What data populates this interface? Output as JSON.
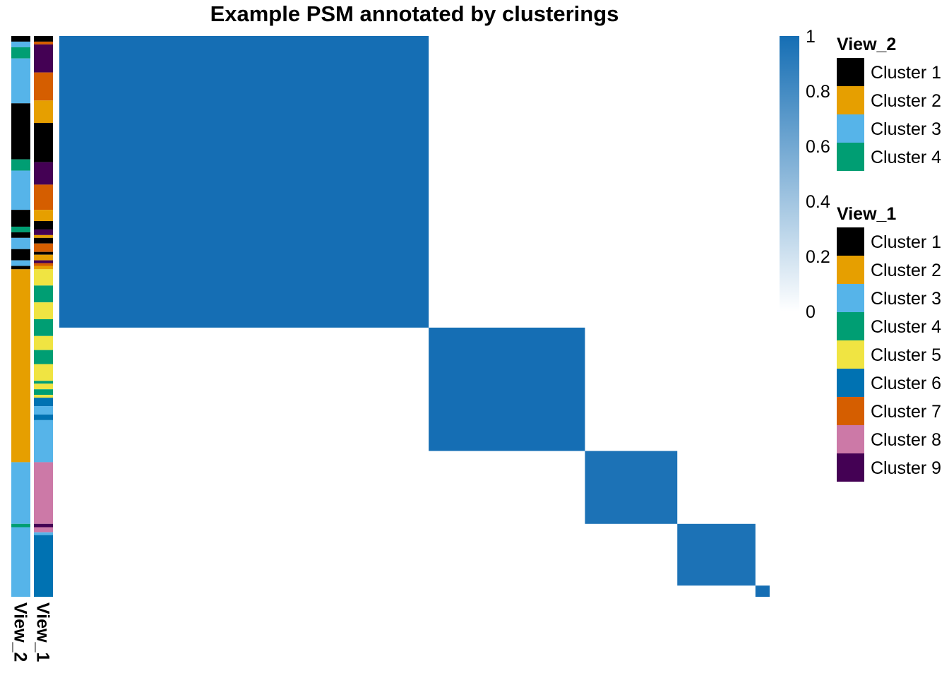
{
  "chart_data": {
    "type": "heatmap",
    "title": "Example PSM annotated by clusterings",
    "color_scale": {
      "low": "#ffffff",
      "high": "#156eb4",
      "min": 0,
      "max": 1,
      "ticks": [
        "1",
        "0.8",
        "0.6",
        "0.4",
        "0.2",
        "0"
      ]
    },
    "n_items": 100,
    "matrix_blocks": [
      {
        "start": 0,
        "end": 52,
        "value": 1.0
      },
      {
        "start": 52,
        "end": 74,
        "value": 1.0
      },
      {
        "start": 74,
        "end": 87,
        "value": 0.97
      },
      {
        "start": 87,
        "end": 98,
        "value": 0.97
      },
      {
        "start": 98,
        "end": 100,
        "value": 1.0
      },
      {
        "start": 100,
        "end": 100,
        "value": 1.0
      }
    ],
    "annotations": [
      {
        "name": "View_2",
        "segments": [
          {
            "start": 0,
            "end": 1,
            "cluster": "Cluster 1"
          },
          {
            "start": 1,
            "end": 2,
            "cluster": "Cluster 3"
          },
          {
            "start": 2,
            "end": 4,
            "cluster": "Cluster 4"
          },
          {
            "start": 4,
            "end": 12,
            "cluster": "Cluster 3"
          },
          {
            "start": 12,
            "end": 22,
            "cluster": "Cluster 1"
          },
          {
            "start": 22,
            "end": 24,
            "cluster": "Cluster 4"
          },
          {
            "start": 24,
            "end": 31,
            "cluster": "Cluster 3"
          },
          {
            "start": 31,
            "end": 34,
            "cluster": "Cluster 1"
          },
          {
            "start": 34,
            "end": 35,
            "cluster": "Cluster 4"
          },
          {
            "start": 35,
            "end": 36,
            "cluster": "Cluster 1"
          },
          {
            "start": 36,
            "end": 38,
            "cluster": "Cluster 3"
          },
          {
            "start": 38,
            "end": 40,
            "cluster": "Cluster 1"
          },
          {
            "start": 40,
            "end": 41,
            "cluster": "Cluster 3"
          },
          {
            "start": 41,
            "end": 41.6,
            "cluster": "Cluster 1"
          },
          {
            "start": 41.6,
            "end": 76,
            "cluster": "Cluster 2"
          },
          {
            "start": 76,
            "end": 87,
            "cluster": "Cluster 3"
          },
          {
            "start": 87,
            "end": 87.6,
            "cluster": "Cluster 4"
          },
          {
            "start": 87.6,
            "end": 100,
            "cluster": "Cluster 3"
          }
        ]
      },
      {
        "name": "View_1",
        "segments": [
          {
            "start": 0,
            "end": 1,
            "cluster": "Cluster 1"
          },
          {
            "start": 1,
            "end": 1.5,
            "cluster": "Cluster 7"
          },
          {
            "start": 1.5,
            "end": 6.5,
            "cluster": "Cluster 9"
          },
          {
            "start": 6.5,
            "end": 11.5,
            "cluster": "Cluster 7"
          },
          {
            "start": 11.5,
            "end": 15.5,
            "cluster": "Cluster 2"
          },
          {
            "start": 15.5,
            "end": 22.5,
            "cluster": "Cluster 1"
          },
          {
            "start": 22.5,
            "end": 26.5,
            "cluster": "Cluster 9"
          },
          {
            "start": 26.5,
            "end": 31,
            "cluster": "Cluster 7"
          },
          {
            "start": 31,
            "end": 33,
            "cluster": "Cluster 2"
          },
          {
            "start": 33,
            "end": 34.5,
            "cluster": "Cluster 1"
          },
          {
            "start": 34.5,
            "end": 35.5,
            "cluster": "Cluster 9"
          },
          {
            "start": 35.5,
            "end": 36,
            "cluster": "Cluster 2"
          },
          {
            "start": 36,
            "end": 37,
            "cluster": "Cluster 1"
          },
          {
            "start": 37,
            "end": 38.5,
            "cluster": "Cluster 7"
          },
          {
            "start": 38.5,
            "end": 39,
            "cluster": "Cluster 1"
          },
          {
            "start": 39,
            "end": 40,
            "cluster": "Cluster 2"
          },
          {
            "start": 40,
            "end": 40.5,
            "cluster": "Cluster 9"
          },
          {
            "start": 40.5,
            "end": 41,
            "cluster": "Cluster 7"
          },
          {
            "start": 41,
            "end": 41.6,
            "cluster": "Cluster 2"
          },
          {
            "start": 41.6,
            "end": 44.5,
            "cluster": "Cluster 5"
          },
          {
            "start": 44.5,
            "end": 47.5,
            "cluster": "Cluster 4"
          },
          {
            "start": 47.5,
            "end": 50.5,
            "cluster": "Cluster 5"
          },
          {
            "start": 50.5,
            "end": 53.5,
            "cluster": "Cluster 4"
          },
          {
            "start": 53.5,
            "end": 56,
            "cluster": "Cluster 5"
          },
          {
            "start": 56,
            "end": 58.5,
            "cluster": "Cluster 4"
          },
          {
            "start": 58.5,
            "end": 61.5,
            "cluster": "Cluster 5"
          },
          {
            "start": 61.5,
            "end": 62,
            "cluster": "Cluster 4"
          },
          {
            "start": 62,
            "end": 63,
            "cluster": "Cluster 5"
          },
          {
            "start": 63,
            "end": 64,
            "cluster": "Cluster 4"
          },
          {
            "start": 64,
            "end": 64.5,
            "cluster": "Cluster 5"
          },
          {
            "start": 64.5,
            "end": 66,
            "cluster": "Cluster 6"
          },
          {
            "start": 66,
            "end": 67.5,
            "cluster": "Cluster 3"
          },
          {
            "start": 67.5,
            "end": 68.5,
            "cluster": "Cluster 6"
          },
          {
            "start": 68.5,
            "end": 76,
            "cluster": "Cluster 3"
          },
          {
            "start": 76,
            "end": 87,
            "cluster": "Cluster 8"
          },
          {
            "start": 87,
            "end": 87.6,
            "cluster": "Cluster 9"
          },
          {
            "start": 87.6,
            "end": 88.5,
            "cluster": "Cluster 8"
          },
          {
            "start": 88.5,
            "end": 89,
            "cluster": "Cluster 3"
          },
          {
            "start": 89,
            "end": 100,
            "cluster": "Cluster 6"
          }
        ]
      }
    ],
    "legends": [
      {
        "title": "View_2",
        "entries": [
          {
            "label": "Cluster 1",
            "color": "#000000"
          },
          {
            "label": "Cluster 2",
            "color": "#e69f00"
          },
          {
            "label": "Cluster 3",
            "color": "#56b4e9"
          },
          {
            "label": "Cluster 4",
            "color": "#009e73"
          }
        ]
      },
      {
        "title": "View_1",
        "entries": [
          {
            "label": "Cluster 1",
            "color": "#000000"
          },
          {
            "label": "Cluster 2",
            "color": "#e69f00"
          },
          {
            "label": "Cluster 3",
            "color": "#56b4e9"
          },
          {
            "label": "Cluster 4",
            "color": "#009e73"
          },
          {
            "label": "Cluster 5",
            "color": "#f0e442"
          },
          {
            "label": "Cluster 6",
            "color": "#0072b2"
          },
          {
            "label": "Cluster 7",
            "color": "#d55e00"
          },
          {
            "label": "Cluster 8",
            "color": "#cc79a7"
          },
          {
            "label": "Cluster 9",
            "color": "#440154"
          }
        ]
      }
    ],
    "cluster_colors": {
      "Cluster 1": "#000000",
      "Cluster 2": "#e69f00",
      "Cluster 3": "#56b4e9",
      "Cluster 4": "#009e73",
      "Cluster 5": "#f0e442",
      "Cluster 6": "#0072b2",
      "Cluster 7": "#d55e00",
      "Cluster 8": "#cc79a7",
      "Cluster 9": "#440154"
    }
  }
}
